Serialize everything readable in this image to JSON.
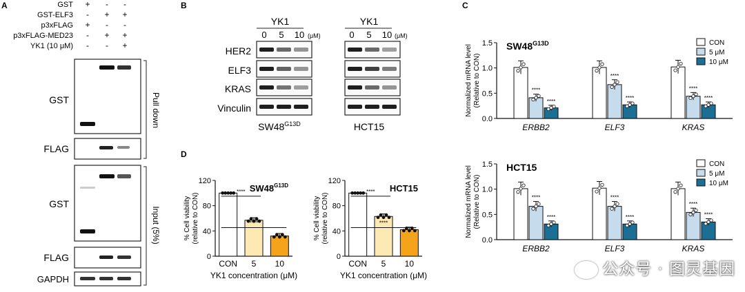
{
  "panels": {
    "a": "A",
    "b": "B",
    "c": "C",
    "d": "D"
  },
  "panel_a": {
    "conditions": [
      {
        "label": "GST",
        "marks": [
          "+",
          "-",
          "-"
        ]
      },
      {
        "label": "GST-ELF3",
        "marks": [
          "-",
          "+",
          "+"
        ]
      },
      {
        "label": "p3xFLAG",
        "marks": [
          "+",
          "-",
          "-"
        ]
      },
      {
        "label": "p3xFLAG-MED23",
        "marks": [
          "-",
          "+",
          "+"
        ]
      },
      {
        "label": "YK1 (10 μM)",
        "marks": [
          "-",
          "-",
          "+"
        ]
      }
    ],
    "blot_labels": [
      "GST",
      "FLAG",
      "GST",
      "FLAG",
      "GAPDH"
    ],
    "side_labels": [
      "Pull down",
      "Input (5%)"
    ]
  },
  "panel_b": {
    "treatment": "YK1",
    "doses": [
      "0",
      "5",
      "10"
    ],
    "unit": "(μM)",
    "rows": [
      "HER2",
      "ELF3",
      "KRAS",
      "Vinculin"
    ],
    "cell_lines": [
      {
        "name": "SW48",
        "sup": "G13D"
      },
      {
        "name": "HCT15",
        "sup": ""
      }
    ]
  },
  "chart_data": [
    {
      "type": "bar",
      "panel": "C",
      "title": "SW48",
      "title_sup": "G13D",
      "ylabel": [
        "Normalized mRNA level",
        "(Relative to CON)"
      ],
      "categories": [
        "ERBB2",
        "ELF3",
        "KRAS"
      ],
      "yticks": [
        "0.0",
        "0.5",
        "1.0",
        "1.5"
      ],
      "ylim": [
        0,
        1.5
      ],
      "series": [
        {
          "name": "CON",
          "color": "#ffffff",
          "values": [
            1.01,
            1.01,
            1.02
          ]
        },
        {
          "name": "5 μM",
          "color": "#c6dbeb",
          "values": [
            0.41,
            0.67,
            0.44
          ]
        },
        {
          "name": "10 μM",
          "color": "#1c6f94",
          "values": [
            0.21,
            0.27,
            0.27
          ]
        }
      ],
      "stars": "****",
      "legend": "top-right"
    },
    {
      "type": "bar",
      "panel": "C",
      "title": "HCT15",
      "title_sup": "",
      "ylabel": [
        "Normalized mRNA level",
        "(Relative to CON)"
      ],
      "categories": [
        "ERBB2",
        "ELF3",
        "KRAS"
      ],
      "yticks": [
        "0.0",
        "0.5",
        "1.0",
        "1.5"
      ],
      "ylim": [
        0,
        1.5
      ],
      "series": [
        {
          "name": "CON",
          "color": "#ffffff",
          "values": [
            1.01,
            1.02,
            1.01
          ]
        },
        {
          "name": "5 μM",
          "color": "#c6dbeb",
          "values": [
            0.66,
            0.66,
            0.54
          ]
        },
        {
          "name": "10 μM",
          "color": "#1c6f94",
          "values": [
            0.31,
            0.31,
            0.35
          ]
        }
      ],
      "stars": "****",
      "legend": "top-right"
    },
    {
      "type": "bar",
      "panel": "D",
      "title": "SW48",
      "title_sup": "G13D",
      "ylabel": [
        "% Cell viability",
        "(relative to CON)"
      ],
      "xlabel": "YK1 concentration (μM)",
      "categories": [
        "CON",
        "5",
        "10"
      ],
      "yticks": [
        "0",
        "40",
        "80",
        "120"
      ],
      "ylim": [
        0,
        120
      ],
      "colors": [
        "#ffffff",
        "#fde9b4",
        "#f5a31a"
      ],
      "values": [
        100,
        57,
        32
      ],
      "stars": "****"
    },
    {
      "type": "bar",
      "panel": "D",
      "title": "HCT15",
      "title_sup": "",
      "ylabel": [
        "% Cell viability",
        "(relative to CON)"
      ],
      "xlabel": "YK1 concentration (μM)",
      "categories": [
        "CON",
        "5",
        "10"
      ],
      "yticks": [
        "0",
        "40",
        "80",
        "120"
      ],
      "ylim": [
        0,
        120
      ],
      "colors": [
        "#ffffff",
        "#fde9b4",
        "#f5a31a"
      ],
      "values": [
        100,
        63,
        42
      ],
      "stars": "****"
    }
  ],
  "watermark": {
    "text": "公众号 · 图灵基因",
    "icon": "wechat-icon"
  }
}
